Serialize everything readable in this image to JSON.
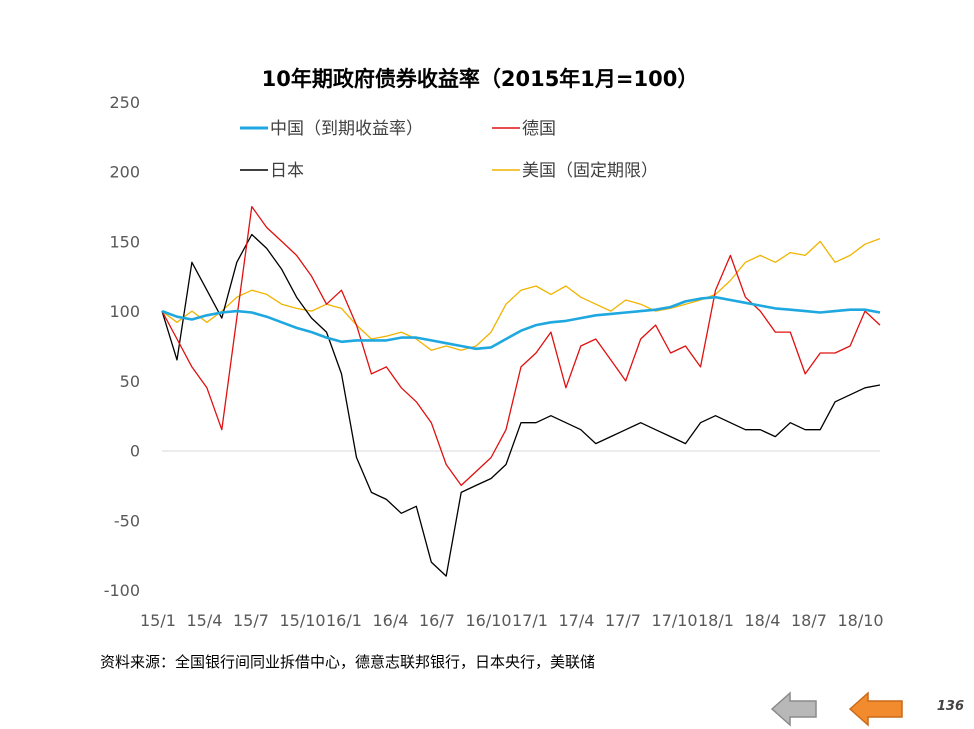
{
  "chart_data": {
    "type": "line",
    "title": "10年期政府债券收益率（2015年1月=100）",
    "x_ticks": [
      "15/1",
      "15/4",
      "15/7",
      "15/10",
      "16/1",
      "16/4",
      "16/7",
      "16/10",
      "17/1",
      "17/4",
      "17/7",
      "17/10",
      "18/1",
      "18/4",
      "18/7",
      "18/10"
    ],
    "y_ticks": [
      250,
      200,
      150,
      100,
      50,
      0,
      -50,
      -100
    ],
    "ylim": [
      -100,
      250
    ],
    "grid": false,
    "legend_position": "top-left",
    "series": [
      {
        "name": "中国（到期收益率）",
        "color": "#1fa8e0",
        "values": [
          [
            0,
            100
          ],
          [
            1,
            96
          ],
          [
            2,
            94
          ],
          [
            3,
            97
          ],
          [
            4,
            99
          ],
          [
            5,
            100
          ],
          [
            6,
            99
          ],
          [
            7,
            96
          ],
          [
            8,
            92
          ],
          [
            9,
            88
          ],
          [
            10,
            85
          ],
          [
            11,
            81
          ],
          [
            12,
            78
          ],
          [
            13,
            79
          ],
          [
            14,
            79
          ],
          [
            15,
            79
          ],
          [
            16,
            81
          ],
          [
            17,
            81
          ],
          [
            18,
            79
          ],
          [
            19,
            77
          ],
          [
            20,
            75
          ],
          [
            21,
            73
          ],
          [
            22,
            74
          ],
          [
            23,
            80
          ],
          [
            24,
            86
          ],
          [
            25,
            90
          ],
          [
            26,
            92
          ],
          [
            27,
            93
          ],
          [
            28,
            95
          ],
          [
            29,
            97
          ],
          [
            30,
            98
          ],
          [
            31,
            99
          ],
          [
            32,
            100
          ],
          [
            33,
            101
          ],
          [
            34,
            103
          ],
          [
            35,
            107
          ],
          [
            36,
            109
          ],
          [
            37,
            110
          ],
          [
            38,
            108
          ],
          [
            39,
            106
          ],
          [
            40,
            104
          ],
          [
            41,
            102
          ],
          [
            42,
            101
          ],
          [
            43,
            100
          ],
          [
            44,
            99
          ],
          [
            45,
            100
          ],
          [
            46,
            101
          ],
          [
            47,
            101
          ],
          [
            48,
            99
          ]
        ]
      },
      {
        "name": "德国",
        "color": "#e01010",
        "values": [
          [
            0,
            100
          ],
          [
            1,
            80
          ],
          [
            2,
            60
          ],
          [
            3,
            45
          ],
          [
            4,
            15
          ],
          [
            5,
            95
          ],
          [
            6,
            175
          ],
          [
            7,
            160
          ],
          [
            8,
            150
          ],
          [
            9,
            140
          ],
          [
            10,
            125
          ],
          [
            11,
            105
          ],
          [
            12,
            115
          ],
          [
            13,
            90
          ],
          [
            14,
            55
          ],
          [
            15,
            60
          ],
          [
            16,
            45
          ],
          [
            17,
            35
          ],
          [
            18,
            20
          ],
          [
            19,
            -10
          ],
          [
            20,
            -25
          ],
          [
            21,
            -15
          ],
          [
            22,
            -5
          ],
          [
            23,
            15
          ],
          [
            24,
            60
          ],
          [
            25,
            70
          ],
          [
            26,
            85
          ],
          [
            27,
            45
          ],
          [
            28,
            75
          ],
          [
            29,
            80
          ],
          [
            30,
            65
          ],
          [
            31,
            50
          ],
          [
            32,
            80
          ],
          [
            33,
            90
          ],
          [
            34,
            70
          ],
          [
            35,
            75
          ],
          [
            36,
            60
          ],
          [
            37,
            115
          ],
          [
            38,
            140
          ],
          [
            39,
            110
          ],
          [
            40,
            100
          ],
          [
            41,
            85
          ],
          [
            42,
            85
          ],
          [
            43,
            55
          ],
          [
            44,
            70
          ],
          [
            45,
            70
          ],
          [
            46,
            75
          ],
          [
            47,
            100
          ],
          [
            48,
            90
          ]
        ]
      },
      {
        "name": "日本",
        "color": "#000000",
        "values": [
          [
            0,
            100
          ],
          [
            1,
            65
          ],
          [
            2,
            135
          ],
          [
            3,
            115
          ],
          [
            4,
            95
          ],
          [
            5,
            135
          ],
          [
            6,
            155
          ],
          [
            7,
            145
          ],
          [
            8,
            130
          ],
          [
            9,
            110
          ],
          [
            10,
            95
          ],
          [
            11,
            85
          ],
          [
            12,
            55
          ],
          [
            13,
            -5
          ],
          [
            14,
            -30
          ],
          [
            15,
            -35
          ],
          [
            16,
            -45
          ],
          [
            17,
            -40
          ],
          [
            18,
            -80
          ],
          [
            19,
            -90
          ],
          [
            20,
            -30
          ],
          [
            21,
            -25
          ],
          [
            22,
            -20
          ],
          [
            23,
            -10
          ],
          [
            24,
            20
          ],
          [
            25,
            20
          ],
          [
            26,
            25
          ],
          [
            27,
            20
          ],
          [
            28,
            15
          ],
          [
            29,
            5
          ],
          [
            30,
            10
          ],
          [
            31,
            15
          ],
          [
            32,
            20
          ],
          [
            33,
            15
          ],
          [
            34,
            10
          ],
          [
            35,
            5
          ],
          [
            36,
            20
          ],
          [
            37,
            25
          ],
          [
            38,
            20
          ],
          [
            39,
            15
          ],
          [
            40,
            15
          ],
          [
            41,
            10
          ],
          [
            42,
            20
          ],
          [
            43,
            15
          ],
          [
            44,
            15
          ],
          [
            45,
            35
          ],
          [
            46,
            40
          ],
          [
            47,
            45
          ],
          [
            48,
            47
          ]
        ]
      },
      {
        "name": "美国（固定期限）",
        "color": "#f0b400",
        "values": [
          [
            0,
            100
          ],
          [
            1,
            92
          ],
          [
            2,
            100
          ],
          [
            3,
            92
          ],
          [
            4,
            100
          ],
          [
            5,
            110
          ],
          [
            6,
            115
          ],
          [
            7,
            112
          ],
          [
            8,
            105
          ],
          [
            9,
            102
          ],
          [
            10,
            100
          ],
          [
            11,
            105
          ],
          [
            12,
            102
          ],
          [
            13,
            90
          ],
          [
            14,
            80
          ],
          [
            15,
            82
          ],
          [
            16,
            85
          ],
          [
            17,
            80
          ],
          [
            18,
            72
          ],
          [
            19,
            75
          ],
          [
            20,
            72
          ],
          [
            21,
            75
          ],
          [
            22,
            85
          ],
          [
            23,
            105
          ],
          [
            24,
            115
          ],
          [
            25,
            118
          ],
          [
            26,
            112
          ],
          [
            27,
            118
          ],
          [
            28,
            110
          ],
          [
            29,
            105
          ],
          [
            30,
            100
          ],
          [
            31,
            108
          ],
          [
            32,
            105
          ],
          [
            33,
            100
          ],
          [
            34,
            102
          ],
          [
            35,
            105
          ],
          [
            36,
            108
          ],
          [
            37,
            112
          ],
          [
            38,
            122
          ],
          [
            39,
            135
          ],
          [
            40,
            140
          ],
          [
            41,
            135
          ],
          [
            42,
            142
          ],
          [
            43,
            140
          ],
          [
            44,
            150
          ],
          [
            45,
            135
          ],
          [
            46,
            140
          ],
          [
            47,
            148
          ],
          [
            48,
            152
          ]
        ]
      }
    ]
  },
  "source_text": "资料来源：全国银行间同业拆借中心，德意志联邦银行，日本央行，美联储",
  "page_number": "136",
  "nav": {
    "prev_icon": "left-arrow-gray-icon",
    "next_icon": "left-arrow-orange-icon"
  }
}
